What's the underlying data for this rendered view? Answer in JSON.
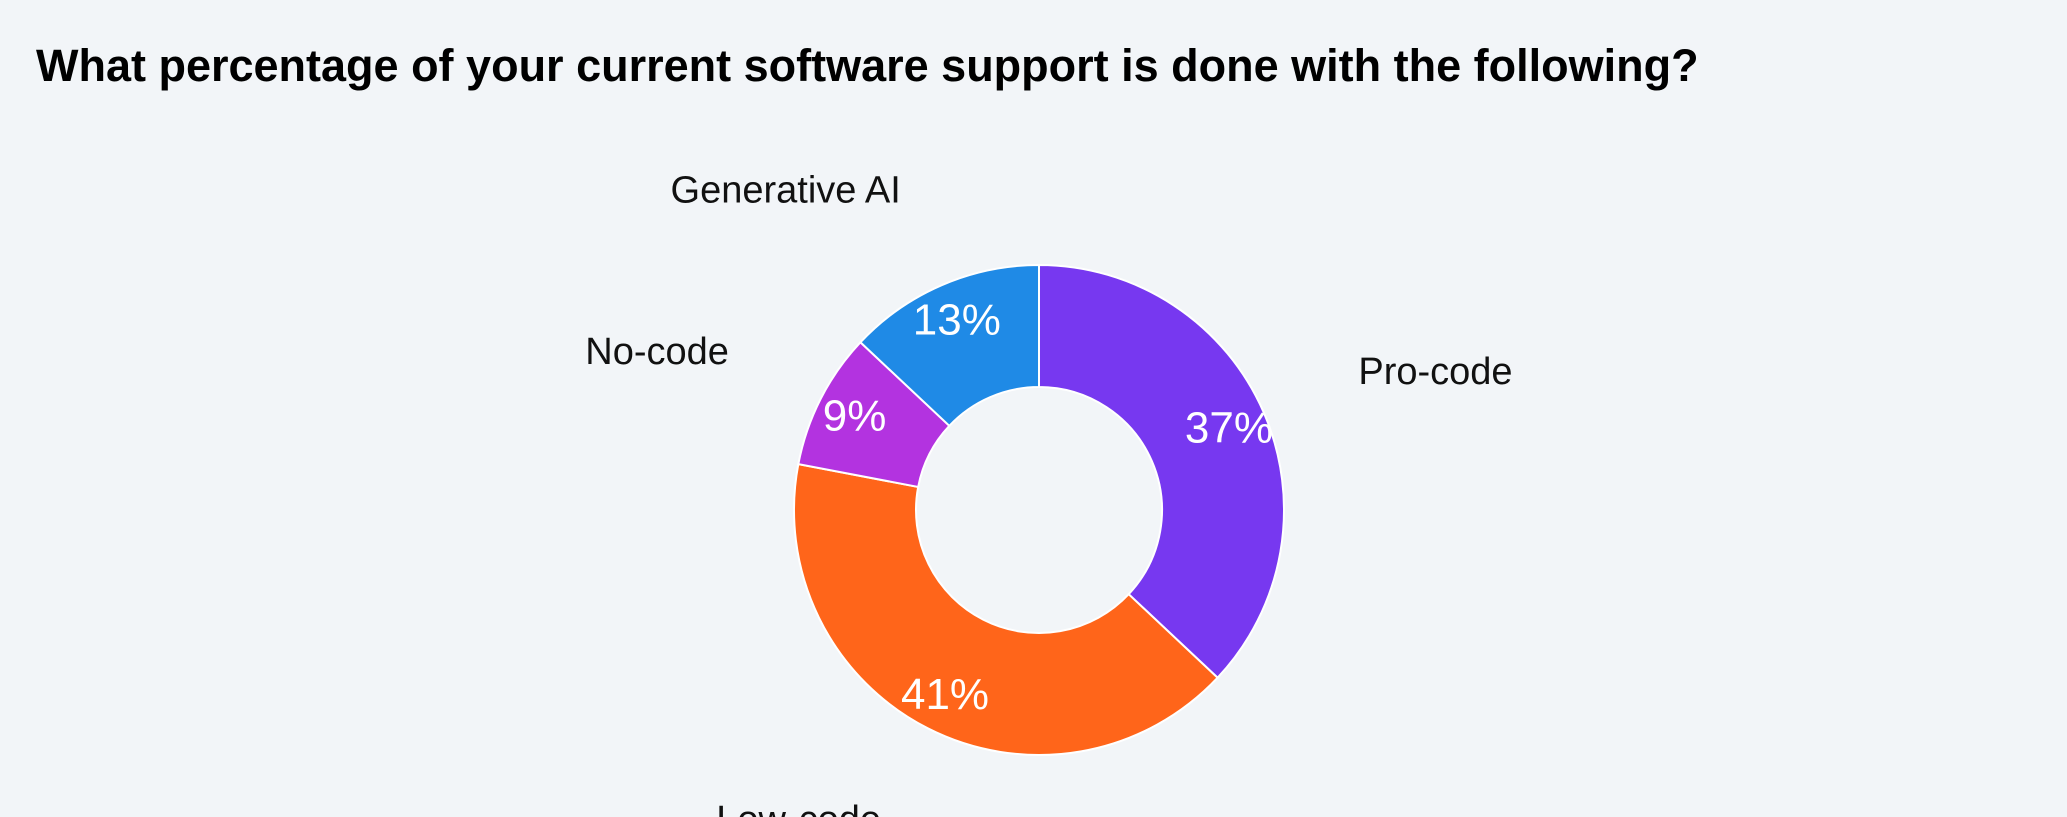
{
  "chart_data": {
    "type": "pie",
    "style": "donut",
    "title": "What percentage of your current software support is done with the following?",
    "categories": [
      "Pro-code",
      "Low-code",
      "No-code",
      "Generative AI"
    ],
    "values": [
      37,
      41,
      9,
      13
    ],
    "value_labels": [
      "37%",
      "41%",
      "9%",
      "13%"
    ],
    "colors": [
      "#7738f0",
      "#ff651a",
      "#b333e0",
      "#1f8ae6"
    ],
    "start_angle": "12 o'clock",
    "direction": "clockwise",
    "labels_outside": true
  }
}
